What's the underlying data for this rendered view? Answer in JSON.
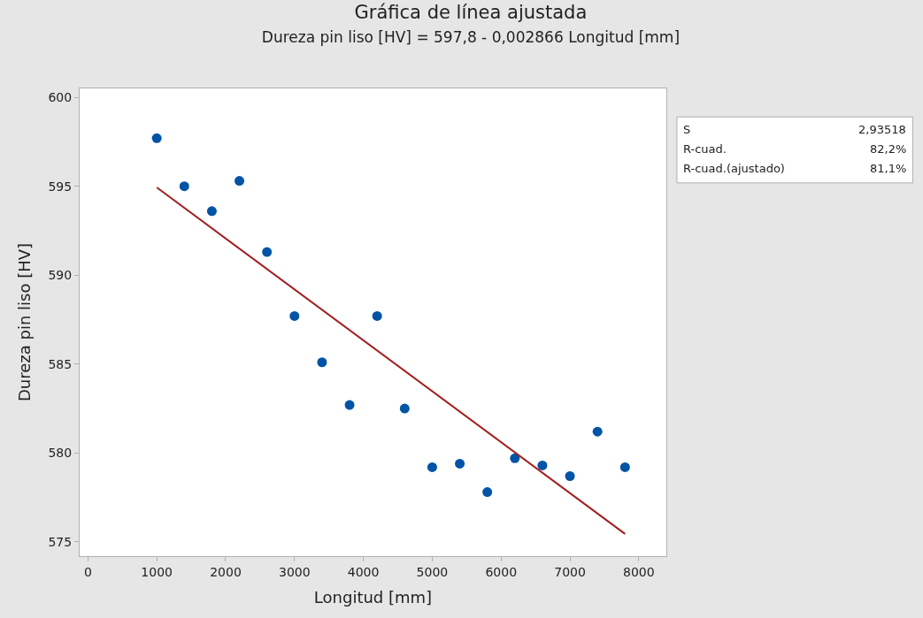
{
  "chart_data": {
    "type": "scatter",
    "title": "Gráfica de línea ajustada",
    "subtitle": "Dureza pin liso [HV] = 597,8 - 0,002866 Longitud [mm]",
    "xlabel": "Longitud [mm]",
    "ylabel": "Dureza pin liso [HV]",
    "x": [
      1000,
      1400,
      1800,
      2200,
      2600,
      3000,
      3400,
      3800,
      4200,
      4600,
      5000,
      5400,
      5800,
      6200,
      6600,
      7000,
      7400,
      7800
    ],
    "series": [
      {
        "color": "#0054a6",
        "marker": "circle",
        "values": [
          597.7,
          595.0,
          593.6,
          595.3,
          591.3,
          587.7,
          585.1,
          582.7,
          587.7,
          582.5,
          579.2,
          579.4,
          577.8,
          579.7,
          579.3,
          578.7,
          581.2,
          579.2
        ]
      },
      {
        "type": "line",
        "color": "#a11d1d",
        "x": [
          1000,
          7800
        ],
        "values": [
          594.93,
          575.45
        ],
        "line_style": "solid"
      }
    ],
    "xlim": [
      -120,
      8400
    ],
    "xticks": [
      0,
      1000,
      2000,
      3000,
      4000,
      5000,
      6000,
      7000,
      8000
    ],
    "ylim": [
      574.2,
      600.5
    ],
    "yticks": [
      575,
      580,
      585,
      590,
      595,
      600
    ],
    "annotations": [
      "S",
      "2,93518",
      "R-cuad.",
      "82,2%",
      "R-cuad.(ajustado)",
      "81,1%"
    ]
  }
}
